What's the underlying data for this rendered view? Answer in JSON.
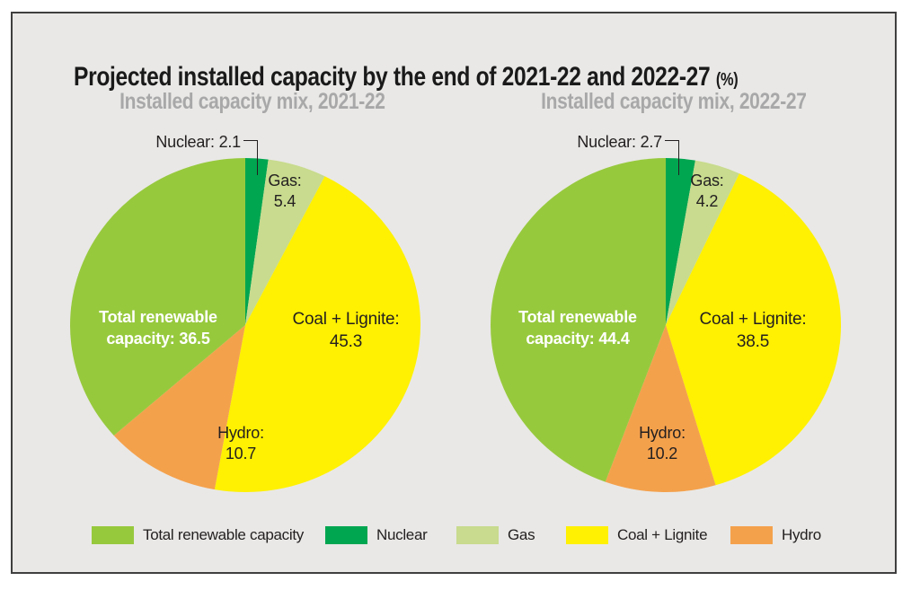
{
  "page": {
    "title": "Projected installed capacity by the end of 2021-22 and 2022-27",
    "title_suffix": "(%)"
  },
  "colors": {
    "renewable": "#97C93D",
    "nuclear": "#00A650",
    "gas": "#C8DB8E",
    "coal": "#FFF101",
    "hydro": "#F4A14C",
    "panel_bg": "#E9E8E6",
    "panel_border": "#3F3F3F",
    "title_text": "#1A1A1A",
    "subtitle_text": "#A8A8A9",
    "label_text": "#231F20"
  },
  "chart_data": [
    {
      "type": "pie",
      "title": "Installed capacity mix, 2021-22",
      "unit": "%",
      "start_angle": "top",
      "direction": "clockwise",
      "slices": [
        {
          "label": "Nuclear",
          "value": 2.1,
          "color": "nuclear"
        },
        {
          "label": "Gas",
          "value": 5.4,
          "color": "gas"
        },
        {
          "label": "Coal + Lignite",
          "value": 45.3,
          "color": "coal"
        },
        {
          "label": "Hydro",
          "value": 10.7,
          "color": "hydro"
        },
        {
          "label": "Total renewable capacity",
          "value": 36.5,
          "color": "renewable"
        }
      ],
      "callouts": {
        "nuclear": "Nuclear: 2.1",
        "gas": [
          "Gas:",
          "5.4"
        ],
        "coal": [
          "Coal + Lignite:",
          "45.3"
        ],
        "renewable": [
          "Total renewable",
          "capacity: 36.5"
        ],
        "hydro": [
          "Hydro:",
          "10.7"
        ]
      }
    },
    {
      "type": "pie",
      "title": "Installed capacity mix, 2022-27",
      "unit": "%",
      "start_angle": "top",
      "direction": "clockwise",
      "slices": [
        {
          "label": "Nuclear",
          "value": 2.7,
          "color": "nuclear"
        },
        {
          "label": "Gas",
          "value": 4.2,
          "color": "gas"
        },
        {
          "label": "Coal + Lignite",
          "value": 38.5,
          "color": "coal"
        },
        {
          "label": "Hydro",
          "value": 10.2,
          "color": "hydro"
        },
        {
          "label": "Total renewable capacity",
          "value": 44.4,
          "color": "renewable"
        }
      ],
      "callouts": {
        "nuclear": "Nuclear: 2.7",
        "gas": [
          "Gas:",
          "4.2"
        ],
        "coal": [
          "Coal + Lignite:",
          "38.5"
        ],
        "renewable": [
          "Total renewable",
          "capacity: 44.4"
        ],
        "hydro": [
          "Hydro:",
          "10.2"
        ]
      }
    }
  ],
  "legend": {
    "items": [
      {
        "label": "Total renewable capacity",
        "color": "renewable"
      },
      {
        "label": "Nuclear",
        "color": "nuclear"
      },
      {
        "label": "Gas",
        "color": "gas"
      },
      {
        "label": "Coal + Lignite",
        "color": "coal"
      },
      {
        "label": "Hydro",
        "color": "hydro"
      }
    ]
  }
}
